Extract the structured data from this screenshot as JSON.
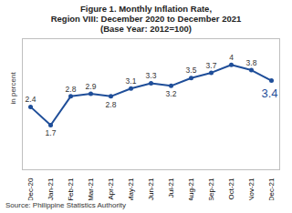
{
  "chart_data": {
    "type": "line",
    "title": "Figure 1. Monthly Inflation Rate,\nRegion VIII: December 2020 to December 2021\n(Base Year: 2012=100)",
    "y_label": "in percent",
    "caption": "Source: Philippine Statistics Authority",
    "categories": [
      "Dec-20",
      "Jan-21",
      "Feb-21",
      "Mar-21",
      "Apr-21",
      "May-21",
      "Jun-21",
      "Jul-21",
      "Aug-21",
      "Sep-21",
      "Oct-21",
      "Nov-21",
      "Dec-21"
    ],
    "values": [
      2.4,
      1.7,
      2.8,
      2.9,
      2.8,
      3.1,
      3.3,
      3.2,
      3.5,
      3.7,
      4.0,
      3.8,
      3.4
    ],
    "color": "#1f4e99",
    "marker": "circle",
    "ylim": [
      0,
      5
    ],
    "data_labels": true,
    "tick_labels": "x",
    "grid": false
  }
}
